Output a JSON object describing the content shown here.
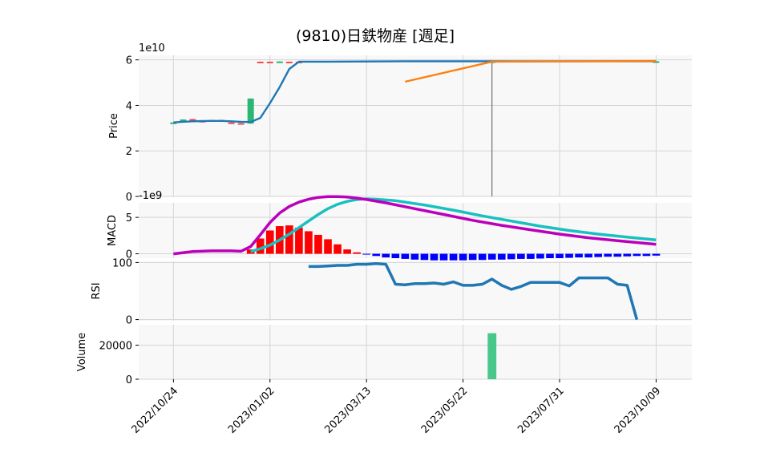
{
  "chart_data": {
    "type": "stock-panels",
    "title": "(9810)日鉄物産  [週足]",
    "colors": {
      "bg": "#f8f8f8",
      "grid": "#d4d4d4",
      "up": "#2ab673",
      "down": "#f24c4c",
      "sma": "#1f77b4",
      "orange": "#ff7f0e",
      "macd": "#bb00bb",
      "signal": "#19c0c0",
      "hist_pos": "#ff0000",
      "hist_neg": "#0000ff",
      "rsi": "#1f77b4",
      "volume": "#49c78a"
    },
    "x_ticks": [
      {
        "i": 0,
        "label": "2022/10/24"
      },
      {
        "i": 10,
        "label": "2023/01/02"
      },
      {
        "i": 20,
        "label": "2023/03/13"
      },
      {
        "i": 30,
        "label": "2023/05/22"
      },
      {
        "i": 40,
        "label": "2023/07/31"
      },
      {
        "i": 50,
        "label": "2023/10/09"
      }
    ],
    "x_range": [
      -3.6,
      53.7
    ],
    "price": {
      "ylabel": "Price",
      "multiplier": "1e10",
      "ylim": [
        0,
        6.2
      ],
      "yticks": [
        0,
        2,
        4,
        6
      ],
      "candles": [
        {
          "i": 0,
          "o": 3.2,
          "c": 3.25,
          "h": 3.26,
          "l": 3.19
        },
        {
          "i": 1,
          "o": 3.3,
          "c": 3.38,
          "h": 3.39,
          "l": 3.29
        },
        {
          "i": 2,
          "o": 3.4,
          "c": 3.35,
          "h": 3.41,
          "l": 3.34
        },
        {
          "i": 3,
          "o": 3.32,
          "c": 3.31,
          "h": 3.33,
          "l": 3.3
        },
        {
          "i": 4,
          "o": 3.33,
          "c": 3.36,
          "h": 3.37,
          "l": 3.32
        },
        {
          "i": 5,
          "o": 3.36,
          "c": 3.3,
          "h": 3.37,
          "l": 3.29
        },
        {
          "i": 6,
          "o": 3.25,
          "c": 3.23,
          "h": 3.26,
          "l": 3.22
        },
        {
          "i": 7,
          "o": 3.22,
          "c": 3.21,
          "h": 3.23,
          "l": 3.2
        },
        {
          "i": 8,
          "o": 3.2,
          "c": 4.3,
          "h": 4.31,
          "l": 3.19
        },
        {
          "i": 9,
          "o": 5.92,
          "c": 5.91,
          "h": 5.93,
          "l": 5.9
        },
        {
          "i": 10,
          "o": 5.92,
          "c": 5.91,
          "h": 5.93,
          "l": 5.9
        },
        {
          "i": 11,
          "o": 5.92,
          "c": 5.93,
          "h": 5.94,
          "l": 5.91
        },
        {
          "i": 12,
          "o": 5.92,
          "c": 5.91,
          "h": 5.93,
          "l": 5.9
        },
        {
          "i": 13,
          "o": 5.92,
          "c": 5.91,
          "h": 5.93,
          "l": 5.9
        },
        {
          "i": 33,
          "o": 5.92,
          "c": 5.93,
          "h": 5.94,
          "l": 0.0
        },
        {
          "i": 50,
          "o": 5.93,
          "c": 5.94,
          "h": 5.95,
          "l": 5.92
        }
      ],
      "sma_line": {
        "i": [
          0,
          1,
          2,
          3,
          4,
          5,
          6,
          7,
          8,
          9,
          10,
          11,
          12,
          13,
          14,
          16,
          20,
          24,
          28,
          32,
          36,
          40,
          44,
          48,
          50
        ],
        "v": [
          3.25,
          3.28,
          3.3,
          3.31,
          3.32,
          3.32,
          3.3,
          3.28,
          3.27,
          3.45,
          4.1,
          4.8,
          5.6,
          5.92,
          5.92,
          5.92,
          5.93,
          5.94,
          5.94,
          5.94,
          5.94,
          5.94,
          5.94,
          5.94,
          5.94
        ]
      },
      "orange_line": {
        "i": [
          24,
          33,
          50
        ],
        "v": [
          5.04,
          5.92,
          5.95
        ]
      }
    },
    "macd": {
      "ylabel": "MACD",
      "multiplier": "-1e9",
      "ylim": [
        -0.6,
        7.0
      ],
      "yticks": [
        0,
        5
      ],
      "macd_line": {
        "i": [
          0,
          2,
          4,
          6,
          7,
          8,
          9,
          10,
          11,
          12,
          13,
          14,
          15,
          16,
          17,
          18,
          19,
          20,
          22,
          25,
          28,
          31,
          34,
          37,
          40,
          43,
          46,
          50
        ],
        "v": [
          0.0,
          0.3,
          0.4,
          0.4,
          0.35,
          1.0,
          2.6,
          4.3,
          5.6,
          6.5,
          7.1,
          7.5,
          7.75,
          7.85,
          7.85,
          7.8,
          7.65,
          7.45,
          7.0,
          6.2,
          5.4,
          4.6,
          3.9,
          3.3,
          2.7,
          2.2,
          1.8,
          1.3
        ]
      },
      "signal_line": {
        "i": [
          8,
          9,
          10,
          11,
          12,
          13,
          14,
          15,
          16,
          17,
          18,
          19,
          20,
          21,
          23,
          26,
          29,
          32,
          35,
          38,
          41,
          44,
          47,
          50
        ],
        "v": [
          0.3,
          0.7,
          1.2,
          1.9,
          2.7,
          3.6,
          4.5,
          5.4,
          6.2,
          6.8,
          7.2,
          7.45,
          7.55,
          7.5,
          7.3,
          6.7,
          6.0,
          5.2,
          4.5,
          3.8,
          3.2,
          2.7,
          2.3,
          1.9
        ]
      },
      "histogram": {
        "i": [
          8,
          9,
          10,
          11,
          12,
          13,
          14,
          15,
          16,
          17,
          18,
          19,
          20,
          21,
          22,
          23,
          24,
          25,
          26,
          27,
          28,
          29,
          30,
          31,
          32,
          33,
          34,
          35,
          36,
          37,
          38,
          39,
          40,
          41,
          42,
          43,
          44,
          45,
          46,
          47,
          48,
          49,
          50
        ],
        "v": [
          0.6,
          2.1,
          3.2,
          3.8,
          3.9,
          3.6,
          3.1,
          2.6,
          2.0,
          1.3,
          0.6,
          0.2,
          -0.1,
          -0.3,
          -0.5,
          -0.6,
          -0.7,
          -0.8,
          -0.85,
          -0.9,
          -0.9,
          -0.9,
          -0.9,
          -0.85,
          -0.85,
          -0.8,
          -0.8,
          -0.75,
          -0.7,
          -0.7,
          -0.65,
          -0.6,
          -0.6,
          -0.55,
          -0.5,
          -0.5,
          -0.45,
          -0.4,
          -0.4,
          -0.35,
          -0.3,
          -0.3,
          -0.25
        ]
      }
    },
    "rsi": {
      "ylabel": "RSI",
      "ylim": [
        -2,
        102
      ],
      "yticks": [
        0,
        100
      ],
      "line": {
        "i": [
          14,
          15,
          16,
          17,
          18,
          19,
          20,
          21,
          22,
          23,
          24,
          25,
          26,
          27,
          28,
          29,
          30,
          31,
          32,
          33,
          34,
          35,
          36,
          37,
          38,
          39,
          40,
          41,
          42,
          43,
          44,
          45,
          46,
          47,
          48
        ],
        "v": [
          93,
          93,
          94,
          95,
          95,
          97,
          97,
          98,
          97,
          62,
          61,
          63,
          63,
          64,
          62,
          66,
          60,
          60,
          62,
          71,
          60,
          53,
          58,
          65,
          65,
          65,
          65,
          59,
          73,
          73,
          73,
          73,
          62,
          60,
          0
        ]
      }
    },
    "volume": {
      "ylabel": "Volume",
      "ylim": [
        0,
        32000
      ],
      "yticks": [
        0,
        20000
      ],
      "bars": [
        {
          "i": 33,
          "v": 27000
        }
      ]
    }
  }
}
